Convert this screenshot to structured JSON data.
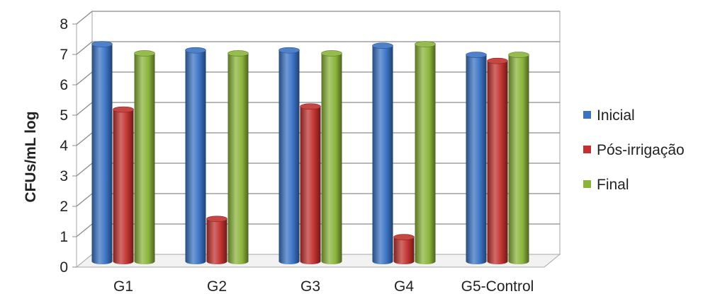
{
  "chart_data": {
    "type": "bar",
    "title": "",
    "xlabel": "",
    "ylabel": "CFUs/mL log",
    "ylim": [
      0,
      8
    ],
    "yticks": [
      "0",
      "1",
      "2",
      "3",
      "4",
      "5",
      "6",
      "7",
      "8"
    ],
    "categories": [
      "G1",
      "G2",
      "G3",
      "G4",
      "G5-Control"
    ],
    "series": [
      {
        "name": "Inicial",
        "color": "#3a73c4",
        "values": [
          7.15,
          6.95,
          6.95,
          7.1,
          6.8
        ]
      },
      {
        "name": "Pós-irrigação",
        "color": "#c0312f",
        "values": [
          5.0,
          1.4,
          5.1,
          0.8,
          6.6
        ]
      },
      {
        "name": "Final",
        "color": "#8ab43a",
        "values": [
          6.85,
          6.85,
          6.85,
          7.15,
          6.8
        ]
      }
    ],
    "grid": true,
    "legend_position": "right",
    "style": "3d-cylinder"
  }
}
